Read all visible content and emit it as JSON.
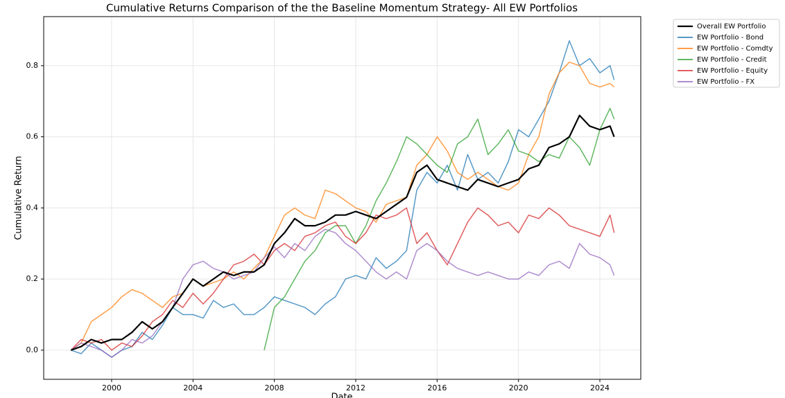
{
  "chart_data": {
    "type": "line",
    "title": "Cumulative Returns Comparison of the the Baseline Momentum Strategy- All EW Portfolios",
    "x_label": "Date",
    "y_label": "Cumulative Return",
    "x": [
      1998,
      1998.5,
      1999,
      1999.5,
      2000,
      2000.5,
      2001,
      2001.5,
      2002,
      2002.5,
      2003,
      2003.5,
      2004,
      2004.5,
      2005,
      2005.5,
      2006,
      2006.5,
      2007,
      2007.5,
      2008,
      2008.5,
      2009,
      2009.5,
      2010,
      2010.5,
      2011,
      2011.5,
      2012,
      2012.5,
      2013,
      2013.5,
      2014,
      2014.5,
      2015,
      2015.5,
      2016,
      2016.5,
      2017,
      2017.5,
      2018,
      2018.5,
      2019,
      2019.5,
      2020,
      2020.5,
      2021,
      2021.5,
      2022,
      2022.5,
      2023,
      2023.5,
      2024,
      2024.5,
      2024.7
    ],
    "series": [
      {
        "name": "Overall EW Portfolio",
        "color": "#000000",
        "values": [
          0,
          0.01,
          0.03,
          0.02,
          0.03,
          0.03,
          0.05,
          0.08,
          0.06,
          0.08,
          0.12,
          0.16,
          0.2,
          0.18,
          0.2,
          0.22,
          0.21,
          0.22,
          0.22,
          0.24,
          0.3,
          0.33,
          0.37,
          0.35,
          0.35,
          0.36,
          0.38,
          0.38,
          0.39,
          0.38,
          0.37,
          0.39,
          0.41,
          0.43,
          0.5,
          0.52,
          0.48,
          0.47,
          0.46,
          0.45,
          0.48,
          0.47,
          0.46,
          0.47,
          0.48,
          0.51,
          0.52,
          0.57,
          0.58,
          0.6,
          0.66,
          0.63,
          0.62,
          0.63,
          0.6
        ]
      },
      {
        "name": "EW Portfolio - Bond",
        "color": "#1f77b4",
        "values": [
          0,
          -0.01,
          0.02,
          0.0,
          -0.02,
          0.0,
          0.01,
          0.05,
          0.03,
          0.07,
          0.12,
          0.1,
          0.1,
          0.09,
          0.14,
          0.12,
          0.13,
          0.1,
          0.1,
          0.12,
          0.15,
          0.14,
          0.13,
          0.12,
          0.1,
          0.13,
          0.15,
          0.2,
          0.21,
          0.2,
          0.26,
          0.23,
          0.25,
          0.28,
          0.45,
          0.5,
          0.47,
          0.52,
          0.45,
          0.55,
          0.48,
          0.5,
          0.47,
          0.53,
          0.62,
          0.6,
          0.65,
          0.7,
          0.78,
          0.87,
          0.8,
          0.82,
          0.78,
          0.8,
          0.76
        ]
      },
      {
        "name": "EW Portfolio - Comdty",
        "color": "#ff7f0e",
        "values": [
          0,
          0.02,
          0.08,
          0.1,
          0.12,
          0.15,
          0.17,
          0.16,
          0.14,
          0.12,
          0.15,
          0.16,
          0.2,
          0.18,
          0.19,
          0.2,
          0.22,
          0.2,
          0.23,
          0.26,
          0.32,
          0.38,
          0.4,
          0.38,
          0.37,
          0.45,
          0.44,
          0.42,
          0.4,
          0.39,
          0.36,
          0.41,
          0.42,
          0.43,
          0.52,
          0.55,
          0.6,
          0.56,
          0.5,
          0.48,
          0.5,
          0.48,
          0.46,
          0.45,
          0.47,
          0.55,
          0.6,
          0.72,
          0.78,
          0.81,
          0.8,
          0.75,
          0.74,
          0.75,
          0.74
        ]
      },
      {
        "name": "EW Portfolio - Credit",
        "color": "#2ca02c",
        "values": [
          null,
          null,
          null,
          null,
          null,
          null,
          null,
          null,
          null,
          null,
          null,
          null,
          null,
          null,
          null,
          null,
          null,
          null,
          null,
          0,
          0.12,
          0.15,
          0.2,
          0.25,
          0.28,
          0.33,
          0.35,
          0.35,
          0.3,
          0.35,
          0.42,
          0.47,
          0.53,
          0.6,
          0.58,
          0.55,
          0.52,
          0.5,
          0.58,
          0.6,
          0.65,
          0.55,
          0.58,
          0.62,
          0.56,
          0.55,
          0.53,
          0.55,
          0.54,
          0.6,
          0.57,
          0.52,
          0.62,
          0.68,
          0.65
        ]
      },
      {
        "name": "EW Portfolio - Equity",
        "color": "#d62728",
        "values": [
          0,
          0.03,
          0.02,
          0.03,
          0.0,
          0.02,
          0.01,
          0.04,
          0.08,
          0.1,
          0.14,
          0.12,
          0.16,
          0.13,
          0.16,
          0.2,
          0.24,
          0.25,
          0.27,
          0.24,
          0.28,
          0.3,
          0.28,
          0.32,
          0.33,
          0.35,
          0.36,
          0.32,
          0.3,
          0.33,
          0.38,
          0.37,
          0.38,
          0.4,
          0.3,
          0.33,
          0.28,
          0.24,
          0.3,
          0.36,
          0.4,
          0.38,
          0.35,
          0.36,
          0.33,
          0.38,
          0.37,
          0.4,
          0.38,
          0.35,
          0.34,
          0.33,
          0.32,
          0.38,
          0.33
        ]
      },
      {
        "name": "EW Portfolio - FX",
        "color": "#9467bd",
        "values": [
          0,
          0.02,
          0.01,
          0.0,
          -0.02,
          0.0,
          0.03,
          0.02,
          0.04,
          0.08,
          0.12,
          0.2,
          0.24,
          0.25,
          0.23,
          0.22,
          0.2,
          0.21,
          0.22,
          0.26,
          0.29,
          0.26,
          0.3,
          0.28,
          0.32,
          0.34,
          0.33,
          0.3,
          0.28,
          0.25,
          0.22,
          0.2,
          0.22,
          0.2,
          0.28,
          0.3,
          0.28,
          0.25,
          0.23,
          0.22,
          0.21,
          0.22,
          0.21,
          0.2,
          0.2,
          0.22,
          0.21,
          0.24,
          0.25,
          0.23,
          0.3,
          0.27,
          0.26,
          0.24,
          0.21
        ]
      }
    ],
    "xlim": [
      1996.66,
      2026.01
    ],
    "ylim": [
      -0.082,
      0.938
    ],
    "xticks": [
      2000,
      2004,
      2008,
      2012,
      2016,
      2020,
      2024
    ],
    "yticks": [
      {
        "value": 0,
        "label": "0.0"
      },
      0.2,
      0.4,
      0.6,
      0.8
    ],
    "grid": true,
    "legend": "outside-upper-right"
  }
}
